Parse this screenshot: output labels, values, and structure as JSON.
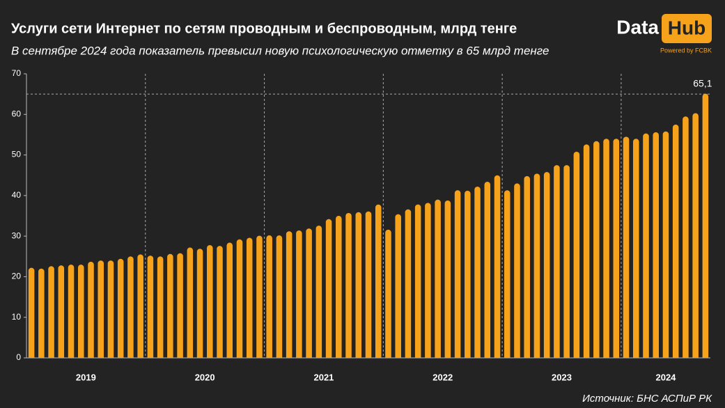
{
  "chart_data": {
    "type": "bar",
    "title": "Услуги сети Интернет по сетям проводным и беспроводным, млрд тенге",
    "subtitle": "В сентябре 2024 года показатель превысил новую психологическую отметку в 65 млрд тенге",
    "source": "Источник: БНС АСПиР РК",
    "logo": {
      "left": "Data",
      "right": "Hub",
      "tagline": "Powered by FCBK"
    },
    "year_labels": [
      "2019",
      "2020",
      "2021",
      "2022",
      "2023",
      "2024"
    ],
    "categories": [
      null,
      null,
      null,
      null,
      null,
      null,
      null,
      null,
      null,
      null,
      null,
      null,
      null,
      null,
      null,
      null,
      null,
      null,
      null,
      null,
      null,
      null,
      null,
      null,
      null,
      null,
      null,
      null,
      null,
      null,
      null,
      null,
      null,
      null,
      null,
      null,
      null,
      null,
      null,
      null,
      null,
      null,
      null,
      null,
      null,
      null,
      null,
      null,
      null,
      null,
      null,
      null,
      null,
      null,
      null,
      null,
      null,
      null,
      null,
      null,
      null,
      null,
      null,
      null,
      null,
      null,
      null,
      null,
      null
    ],
    "values": [
      22.2,
      22.0,
      22.6,
      22.8,
      23.0,
      23.0,
      23.7,
      24.0,
      24.0,
      24.4,
      25.0,
      25.5,
      25.2,
      25.0,
      25.6,
      25.8,
      27.2,
      26.9,
      27.8,
      27.6,
      28.4,
      29.2,
      29.6,
      30.1,
      30.2,
      30.2,
      31.2,
      31.4,
      31.9,
      32.6,
      34.2,
      35.0,
      35.7,
      35.9,
      36.1,
      37.8,
      31.6,
      35.4,
      36.6,
      37.8,
      38.2,
      39.0,
      38.8,
      41.3,
      41.2,
      42.2,
      43.4,
      45.0,
      41.3,
      43.0,
      44.8,
      45.4,
      45.8,
      47.5,
      47.5,
      50.8,
      52.6,
      53.4,
      54.0,
      54.0,
      54.5,
      54.0,
      55.3,
      55.6,
      55.8,
      57.5,
      59.5,
      60.3,
      65.1
    ],
    "value_labels": [
      null,
      null,
      null,
      null,
      null,
      null,
      null,
      null,
      null,
      null,
      null,
      null,
      null,
      null,
      null,
      null,
      null,
      null,
      null,
      null,
      null,
      null,
      null,
      null,
      null,
      null,
      null,
      null,
      null,
      null,
      null,
      null,
      null,
      null,
      null,
      null,
      null,
      null,
      null,
      null,
      null,
      null,
      null,
      null,
      null,
      null,
      null,
      null,
      null,
      null,
      null,
      null,
      null,
      null,
      null,
      null,
      null,
      null,
      null,
      null,
      null,
      null,
      null,
      null,
      null,
      null,
      null,
      null,
      "65,1"
    ],
    "reference_line": 65,
    "color": "#f7a21b",
    "ylim": [
      0,
      70
    ],
    "yticks": [
      0,
      10,
      20,
      30,
      40,
      50,
      60,
      70
    ],
    "grid": false
  }
}
